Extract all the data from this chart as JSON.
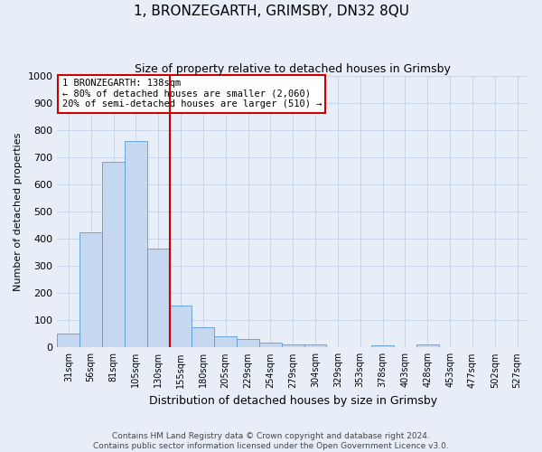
{
  "title": "1, BRONZEGARTH, GRIMSBY, DN32 8QU",
  "subtitle": "Size of property relative to detached houses in Grimsby",
  "xlabel": "Distribution of detached houses by size in Grimsby",
  "ylabel": "Number of detached properties",
  "footer_line1": "Contains HM Land Registry data © Crown copyright and database right 2024.",
  "footer_line2": "Contains public sector information licensed under the Open Government Licence v3.0.",
  "categories": [
    "31sqm",
    "56sqm",
    "81sqm",
    "105sqm",
    "130sqm",
    "155sqm",
    "180sqm",
    "205sqm",
    "229sqm",
    "254sqm",
    "279sqm",
    "304sqm",
    "329sqm",
    "353sqm",
    "378sqm",
    "403sqm",
    "428sqm",
    "453sqm",
    "477sqm",
    "502sqm",
    "527sqm"
  ],
  "values": [
    50,
    425,
    685,
    760,
    365,
    155,
    75,
    42,
    30,
    18,
    12,
    10,
    0,
    0,
    8,
    0,
    10,
    0,
    0,
    0,
    0
  ],
  "bar_color": "#c5d8f0",
  "bar_edge_color": "#5b9bd5",
  "grid_color": "#c8d4e8",
  "background_color": "#e8eef8",
  "vline_color": "#cc0000",
  "annotation_text": "1 BRONZEGARTH: 138sqm\n← 80% of detached houses are smaller (2,060)\n20% of semi-detached houses are larger (510) →",
  "annotation_box_color": "#ffffff",
  "annotation_box_edge": "#cc0000",
  "ylim": [
    0,
    1000
  ],
  "yticks": [
    0,
    100,
    200,
    300,
    400,
    500,
    600,
    700,
    800,
    900,
    1000
  ]
}
